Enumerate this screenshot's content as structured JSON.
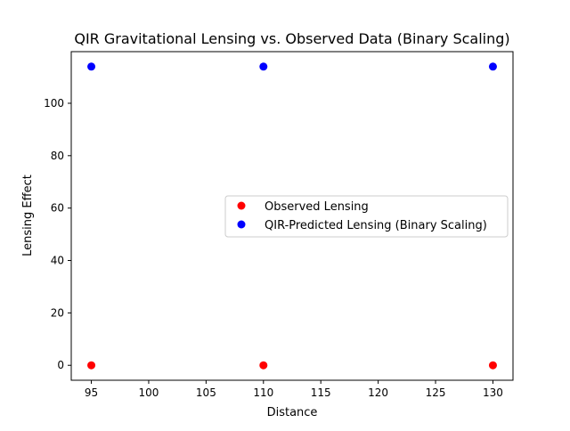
{
  "chart_data": {
    "type": "scatter",
    "title": "QIR Gravitational Lensing vs. Observed Data (Binary Scaling)",
    "xlabel": "Distance",
    "ylabel": "Lensing Effect",
    "xlim": [
      93.25,
      131.75
    ],
    "ylim": [
      -5.7,
      119.7
    ],
    "x_ticks": [
      95,
      100,
      105,
      110,
      115,
      120,
      125,
      130
    ],
    "y_ticks": [
      0,
      20,
      40,
      60,
      80,
      100
    ],
    "grid": false,
    "legend_position": "center-right",
    "series": [
      {
        "name": "Observed Lensing",
        "color": "#ff0000",
        "x": [
          95,
          110,
          130
        ],
        "y": [
          0,
          0,
          0
        ]
      },
      {
        "name": "QIR-Predicted Lensing (Binary Scaling)",
        "color": "#0000ff",
        "x": [
          95,
          110,
          130
        ],
        "y": [
          114,
          114,
          114
        ]
      }
    ]
  }
}
